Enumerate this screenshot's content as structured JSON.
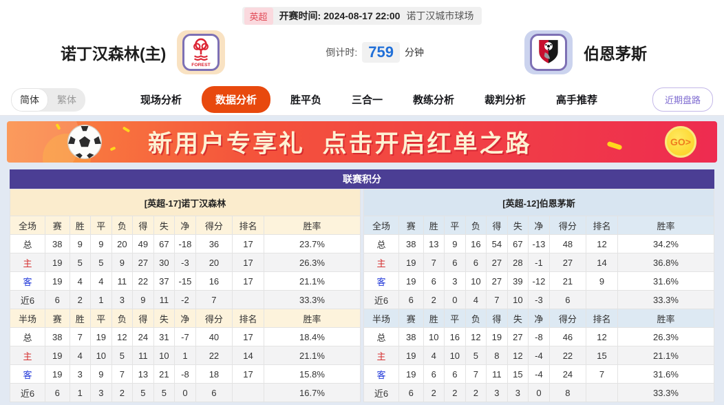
{
  "top_bar": {
    "league_badge": "英超",
    "kickoff_label": "开赛时间:",
    "kickoff_value": "2024-08-17 22:00",
    "venue": "诺丁汉城市球场"
  },
  "match_header": {
    "home_team": "诺丁汉森林(主)",
    "away_team": "伯恩茅斯",
    "countdown_label": "倒计时:",
    "countdown_value": "759",
    "countdown_unit": "分钟"
  },
  "nav": {
    "lang_simplified": "简体",
    "lang_traditional": "繁体",
    "tabs": [
      {
        "label": "现场分析",
        "active": false
      },
      {
        "label": "数据分析",
        "active": true
      },
      {
        "label": "胜平负",
        "active": false
      },
      {
        "label": "三合一",
        "active": false
      },
      {
        "label": "教练分析",
        "active": false
      },
      {
        "label": "裁判分析",
        "active": false
      },
      {
        "label": "高手推荐",
        "active": false
      }
    ],
    "recent_odds_button": "近期盘路"
  },
  "banner": {
    "text": "新用户专享礼  点击开启红单之路",
    "go_label": "GO>"
  },
  "standings": {
    "title": "联赛积分",
    "columns_full": [
      "全场",
      "赛",
      "胜",
      "平",
      "负",
      "得",
      "失",
      "净",
      "得分",
      "排名",
      "胜率"
    ],
    "columns_half": [
      "半场",
      "赛",
      "胜",
      "平",
      "负",
      "得",
      "失",
      "净",
      "得分",
      "排名",
      "胜率"
    ],
    "home": {
      "header": "[英超-17]诺丁汉森林",
      "full_rows": [
        [
          "总",
          "38",
          "9",
          "9",
          "20",
          "49",
          "67",
          "-18",
          "36",
          "17",
          "23.7%"
        ],
        [
          "主",
          "19",
          "5",
          "5",
          "9",
          "27",
          "30",
          "-3",
          "20",
          "17",
          "26.3%"
        ],
        [
          "客",
          "19",
          "4",
          "4",
          "11",
          "22",
          "37",
          "-15",
          "16",
          "17",
          "21.1%"
        ],
        [
          "近6",
          "6",
          "2",
          "1",
          "3",
          "9",
          "11",
          "-2",
          "7",
          "",
          "33.3%"
        ]
      ],
      "half_rows": [
        [
          "总",
          "38",
          "7",
          "19",
          "12",
          "24",
          "31",
          "-7",
          "40",
          "17",
          "18.4%"
        ],
        [
          "主",
          "19",
          "4",
          "10",
          "5",
          "11",
          "10",
          "1",
          "22",
          "14",
          "21.1%"
        ],
        [
          "客",
          "19",
          "3",
          "9",
          "7",
          "13",
          "21",
          "-8",
          "18",
          "17",
          "15.8%"
        ],
        [
          "近6",
          "6",
          "1",
          "3",
          "2",
          "5",
          "5",
          "0",
          "6",
          "",
          "16.7%"
        ]
      ]
    },
    "away": {
      "header": "[英超-12]伯恩茅斯",
      "full_rows": [
        [
          "总",
          "38",
          "13",
          "9",
          "16",
          "54",
          "67",
          "-13",
          "48",
          "12",
          "34.2%"
        ],
        [
          "主",
          "19",
          "7",
          "6",
          "6",
          "27",
          "28",
          "-1",
          "27",
          "14",
          "36.8%"
        ],
        [
          "客",
          "19",
          "6",
          "3",
          "10",
          "27",
          "39",
          "-12",
          "21",
          "9",
          "31.6%"
        ],
        [
          "近6",
          "6",
          "2",
          "0",
          "4",
          "7",
          "10",
          "-3",
          "6",
          "",
          "33.3%"
        ]
      ],
      "half_rows": [
        [
          "总",
          "38",
          "10",
          "16",
          "12",
          "19",
          "27",
          "-8",
          "46",
          "12",
          "26.3%"
        ],
        [
          "主",
          "19",
          "4",
          "10",
          "5",
          "8",
          "12",
          "-4",
          "22",
          "15",
          "21.1%"
        ],
        [
          "客",
          "19",
          "6",
          "6",
          "7",
          "11",
          "15",
          "-4",
          "24",
          "7",
          "31.6%"
        ],
        [
          "近6",
          "6",
          "2",
          "2",
          "2",
          "3",
          "3",
          "0",
          "8",
          "",
          "33.3%"
        ]
      ]
    }
  },
  "colors": {
    "header_purple": "#4b3e94",
    "active_tab_orange": "#e8490e",
    "home_accent_cream": "#fbeccd",
    "away_accent_blue": "#d8e5f1",
    "home_label_red": "#d42f2f",
    "away_label_blue": "#2239d9",
    "countdown_blue": "#2170d8",
    "banner_gradient_start": "#fb8b42",
    "banner_gradient_end": "#ee2b50",
    "recent_button_purple": "#7d6ad0"
  }
}
